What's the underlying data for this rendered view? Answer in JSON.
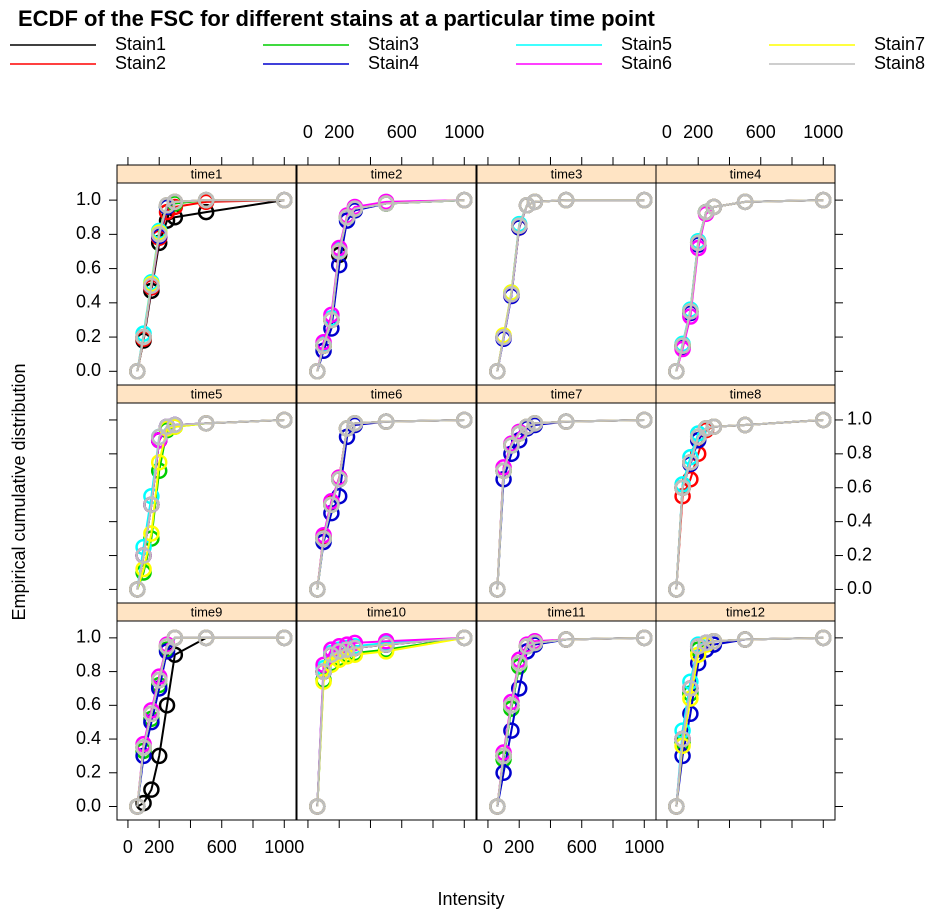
{
  "chart_data": {
    "type": "ecdf",
    "title": "ECDF of the FSC for different stains at a particular time point",
    "xlabel": "Intensity",
    "ylabel": "Empirical cumulative distribution",
    "series": [
      {
        "name": "Stain1",
        "color": "#000000"
      },
      {
        "name": "Stain2",
        "color": "#ff0000"
      },
      {
        "name": "Stain3",
        "color": "#00cd00"
      },
      {
        "name": "Stain4",
        "color": "#0000cd"
      },
      {
        "name": "Stain5",
        "color": "#00ffff"
      },
      {
        "name": "Stain6",
        "color": "#ff00ff"
      },
      {
        "name": "Stain7",
        "color": "#ffff00"
      },
      {
        "name": "Stain8",
        "color": "#bebebe"
      }
    ],
    "x": [
      60,
      100,
      150,
      200,
      250,
      300,
      500,
      1000
    ],
    "xlim": [
      -70,
      1075
    ],
    "xticks": [
      0,
      200,
      600,
      1000
    ],
    "xminorticks": [
      400,
      800
    ],
    "ylim": [
      -0.08,
      1.1
    ],
    "yticks": [
      {
        "value": 0,
        "label": "0.0"
      },
      {
        "value": 0.2,
        "label": "0.2"
      },
      {
        "value": 0.4,
        "label": "0.4"
      },
      {
        "value": 0.6,
        "label": "0.6"
      },
      {
        "value": 0.8,
        "label": "0.8"
      },
      {
        "value": 1,
        "label": "1.0"
      }
    ],
    "panels": [
      {
        "title": "time1",
        "values": [
          [
            0,
            0.18,
            0.47,
            0.75,
            0.88,
            0.9,
            0.93,
            1
          ],
          [
            0,
            0.19,
            0.49,
            0.78,
            0.93,
            0.96,
            0.99,
            1
          ],
          [
            0,
            0.2,
            0.5,
            0.8,
            0.96,
            0.98,
            1,
            1
          ],
          [
            0,
            0.2,
            0.5,
            0.79,
            0.96,
            0.99,
            1,
            1
          ],
          [
            0,
            0.22,
            0.52,
            0.82,
            0.97,
            0.99,
            1,
            1
          ],
          [
            0,
            0.2,
            0.5,
            0.8,
            0.97,
            0.99,
            1,
            1
          ],
          [
            0,
            0.2,
            0.51,
            0.81,
            0.97,
            0.99,
            1,
            1
          ],
          [
            0,
            0.2,
            0.5,
            0.8,
            0.97,
            0.99,
            1,
            1
          ]
        ]
      },
      {
        "title": "time2",
        "values": [
          [
            0,
            0.15,
            0.3,
            0.68,
            0.9,
            0.95,
            0.98,
            1
          ],
          [
            0,
            0.15,
            0.3,
            0.7,
            0.9,
            0.95,
            0.98,
            1
          ],
          [
            0,
            0.15,
            0.3,
            0.7,
            0.9,
            0.95,
            0.98,
            1
          ],
          [
            0,
            0.12,
            0.25,
            0.62,
            0.88,
            0.94,
            0.98,
            1
          ],
          [
            0,
            0.16,
            0.31,
            0.71,
            0.9,
            0.95,
            0.98,
            1
          ],
          [
            0,
            0.17,
            0.33,
            0.72,
            0.91,
            0.96,
            0.99,
            1
          ],
          [
            0,
            0.15,
            0.3,
            0.7,
            0.9,
            0.95,
            0.98,
            1
          ],
          [
            0,
            0.15,
            0.3,
            0.7,
            0.9,
            0.95,
            0.98,
            1
          ]
        ]
      },
      {
        "title": "time3",
        "values": [
          [
            0,
            0.2,
            0.45,
            0.85,
            0.97,
            0.99,
            1,
            1
          ],
          [
            0,
            0.2,
            0.45,
            0.84,
            0.97,
            0.99,
            1,
            1
          ],
          [
            0,
            0.2,
            0.45,
            0.85,
            0.97,
            0.99,
            1,
            1
          ],
          [
            0,
            0.19,
            0.44,
            0.84,
            0.97,
            0.99,
            1,
            1
          ],
          [
            0,
            0.2,
            0.46,
            0.86,
            0.97,
            0.99,
            1,
            1
          ],
          [
            0,
            0.2,
            0.45,
            0.85,
            0.97,
            0.99,
            1,
            1
          ],
          [
            0,
            0.21,
            0.46,
            0.85,
            0.97,
            0.99,
            1,
            1
          ],
          [
            0,
            0.2,
            0.45,
            0.85,
            0.97,
            0.99,
            1,
            1
          ]
        ]
      },
      {
        "title": "time4",
        "values": [
          [
            0,
            0.15,
            0.35,
            0.75,
            0.93,
            0.96,
            0.99,
            1
          ],
          [
            0,
            0.15,
            0.35,
            0.75,
            0.93,
            0.96,
            0.99,
            1
          ],
          [
            0,
            0.15,
            0.35,
            0.75,
            0.93,
            0.96,
            0.99,
            1
          ],
          [
            0,
            0.14,
            0.34,
            0.74,
            0.93,
            0.96,
            0.99,
            1
          ],
          [
            0,
            0.16,
            0.36,
            0.76,
            0.93,
            0.96,
            0.99,
            1
          ],
          [
            0,
            0.13,
            0.32,
            0.72,
            0.92,
            0.96,
            0.99,
            1
          ],
          [
            0,
            0.15,
            0.35,
            0.75,
            0.93,
            0.96,
            0.99,
            1
          ],
          [
            0,
            0.15,
            0.35,
            0.75,
            0.93,
            0.96,
            0.99,
            1
          ]
        ]
      },
      {
        "title": "time5",
        "values": [
          [
            0,
            0.2,
            0.5,
            0.88,
            0.96,
            0.97,
            0.98,
            1
          ],
          [
            0,
            0.2,
            0.5,
            0.88,
            0.96,
            0.97,
            0.98,
            1
          ],
          [
            0,
            0.1,
            0.3,
            0.7,
            0.94,
            0.96,
            0.98,
            1
          ],
          [
            0,
            0.2,
            0.5,
            0.88,
            0.96,
            0.97,
            0.98,
            1
          ],
          [
            0,
            0.25,
            0.55,
            0.9,
            0.96,
            0.97,
            0.98,
            1
          ],
          [
            0,
            0.2,
            0.5,
            0.88,
            0.96,
            0.97,
            0.98,
            1
          ],
          [
            0,
            0.12,
            0.33,
            0.75,
            0.95,
            0.96,
            0.98,
            1
          ],
          [
            0,
            0.2,
            0.5,
            0.9,
            0.96,
            0.97,
            0.98,
            1
          ]
        ]
      },
      {
        "title": "time6",
        "values": [
          [
            0,
            0.3,
            0.5,
            0.65,
            0.95,
            0.98,
            0.99,
            1
          ],
          [
            0,
            0.31,
            0.51,
            0.66,
            0.95,
            0.98,
            0.99,
            1
          ],
          [
            0,
            0.3,
            0.5,
            0.65,
            0.95,
            0.98,
            0.99,
            1
          ],
          [
            0,
            0.28,
            0.45,
            0.55,
            0.9,
            0.97,
            0.99,
            1
          ],
          [
            0,
            0.3,
            0.5,
            0.65,
            0.95,
            0.98,
            0.99,
            1
          ],
          [
            0,
            0.32,
            0.52,
            0.66,
            0.95,
            0.98,
            0.99,
            1
          ],
          [
            0,
            0.3,
            0.5,
            0.65,
            0.95,
            0.98,
            0.99,
            1
          ],
          [
            0,
            0.3,
            0.5,
            0.65,
            0.95,
            0.98,
            0.99,
            1
          ]
        ]
      },
      {
        "title": "time7",
        "values": [
          [
            0,
            0.7,
            0.85,
            0.92,
            0.96,
            0.98,
            0.99,
            1
          ],
          [
            0,
            0.7,
            0.85,
            0.92,
            0.96,
            0.98,
            0.99,
            1
          ],
          [
            0,
            0.7,
            0.85,
            0.92,
            0.96,
            0.98,
            0.99,
            1
          ],
          [
            0,
            0.65,
            0.8,
            0.88,
            0.95,
            0.97,
            0.99,
            1
          ],
          [
            0,
            0.7,
            0.85,
            0.92,
            0.96,
            0.98,
            0.99,
            1
          ],
          [
            0,
            0.72,
            0.86,
            0.93,
            0.96,
            0.98,
            0.99,
            1
          ],
          [
            0,
            0.7,
            0.85,
            0.92,
            0.96,
            0.98,
            0.99,
            1
          ],
          [
            0,
            0.7,
            0.85,
            0.92,
            0.96,
            0.98,
            0.99,
            1
          ]
        ]
      },
      {
        "title": "time8",
        "values": [
          [
            0,
            0.6,
            0.75,
            0.9,
            0.95,
            0.96,
            0.97,
            1
          ],
          [
            0,
            0.55,
            0.65,
            0.8,
            0.94,
            0.96,
            0.97,
            1
          ],
          [
            0,
            0.6,
            0.75,
            0.9,
            0.95,
            0.96,
            0.97,
            1
          ],
          [
            0,
            0.6,
            0.74,
            0.88,
            0.95,
            0.96,
            0.97,
            1
          ],
          [
            0,
            0.62,
            0.78,
            0.92,
            0.95,
            0.96,
            0.97,
            1
          ],
          [
            0,
            0.6,
            0.75,
            0.9,
            0.95,
            0.96,
            0.97,
            1
          ],
          [
            0,
            0.6,
            0.75,
            0.9,
            0.95,
            0.96,
            0.97,
            1
          ],
          [
            0,
            0.6,
            0.75,
            0.9,
            0.95,
            0.96,
            0.97,
            1
          ]
        ]
      },
      {
        "title": "time9",
        "values": [
          [
            0,
            0.02,
            0.1,
            0.3,
            0.6,
            0.9,
            1,
            1
          ],
          [
            0,
            0.35,
            0.55,
            0.75,
            0.95,
            1,
            1,
            1
          ],
          [
            0,
            0.33,
            0.52,
            0.72,
            0.93,
            1,
            1,
            1
          ],
          [
            0,
            0.3,
            0.5,
            0.7,
            0.92,
            1,
            1,
            1
          ],
          [
            0,
            0.35,
            0.55,
            0.75,
            0.95,
            1,
            1,
            1
          ],
          [
            0,
            0.37,
            0.57,
            0.77,
            0.96,
            1,
            1,
            1
          ],
          [
            0,
            0.35,
            0.55,
            0.75,
            0.95,
            1,
            1,
            1
          ],
          [
            0,
            0.35,
            0.55,
            0.75,
            0.95,
            1,
            1,
            1
          ]
        ]
      },
      {
        "title": "time10",
        "values": [
          [
            0,
            0.8,
            0.9,
            0.92,
            0.93,
            0.94,
            0.96,
            1
          ],
          [
            0,
            0.8,
            0.9,
            0.92,
            0.93,
            0.94,
            0.96,
            1
          ],
          [
            0,
            0.75,
            0.85,
            0.88,
            0.9,
            0.91,
            0.93,
            1
          ],
          [
            0,
            0.8,
            0.9,
            0.92,
            0.93,
            0.94,
            0.96,
            1
          ],
          [
            0,
            0.82,
            0.91,
            0.93,
            0.94,
            0.95,
            0.97,
            1
          ],
          [
            0,
            0.84,
            0.93,
            0.95,
            0.96,
            0.97,
            0.98,
            1
          ],
          [
            0,
            0.74,
            0.84,
            0.87,
            0.89,
            0.9,
            0.92,
            1
          ],
          [
            0,
            0.8,
            0.9,
            0.92,
            0.93,
            0.94,
            0.96,
            1
          ]
        ]
      },
      {
        "title": "time11",
        "values": [
          [
            0,
            0.3,
            0.6,
            0.85,
            0.95,
            0.97,
            0.99,
            1
          ],
          [
            0,
            0.3,
            0.6,
            0.85,
            0.95,
            0.97,
            0.99,
            1
          ],
          [
            0,
            0.28,
            0.58,
            0.83,
            0.95,
            0.97,
            0.99,
            1
          ],
          [
            0,
            0.2,
            0.45,
            0.7,
            0.92,
            0.96,
            0.99,
            1
          ],
          [
            0,
            0.3,
            0.6,
            0.85,
            0.95,
            0.97,
            0.99,
            1
          ],
          [
            0,
            0.32,
            0.62,
            0.87,
            0.96,
            0.98,
            0.99,
            1
          ],
          [
            0,
            0.3,
            0.6,
            0.85,
            0.95,
            0.97,
            0.99,
            1
          ],
          [
            0,
            0.3,
            0.6,
            0.85,
            0.95,
            0.97,
            0.99,
            1
          ]
        ]
      },
      {
        "title": "time12",
        "values": [
          [
            0,
            0.4,
            0.7,
            0.95,
            0.97,
            0.98,
            0.99,
            1
          ],
          [
            0,
            0.4,
            0.7,
            0.95,
            0.97,
            0.98,
            0.99,
            1
          ],
          [
            0,
            0.38,
            0.67,
            0.93,
            0.97,
            0.98,
            0.99,
            1
          ],
          [
            0,
            0.3,
            0.55,
            0.85,
            0.93,
            0.96,
            0.99,
            1
          ],
          [
            0,
            0.45,
            0.74,
            0.96,
            0.97,
            0.98,
            0.99,
            1
          ],
          [
            0,
            0.4,
            0.7,
            0.95,
            0.97,
            0.98,
            0.99,
            1
          ],
          [
            0,
            0.36,
            0.64,
            0.9,
            0.96,
            0.98,
            0.99,
            1
          ],
          [
            0,
            0.4,
            0.7,
            0.95,
            0.97,
            0.98,
            0.99,
            1
          ]
        ]
      }
    ]
  }
}
